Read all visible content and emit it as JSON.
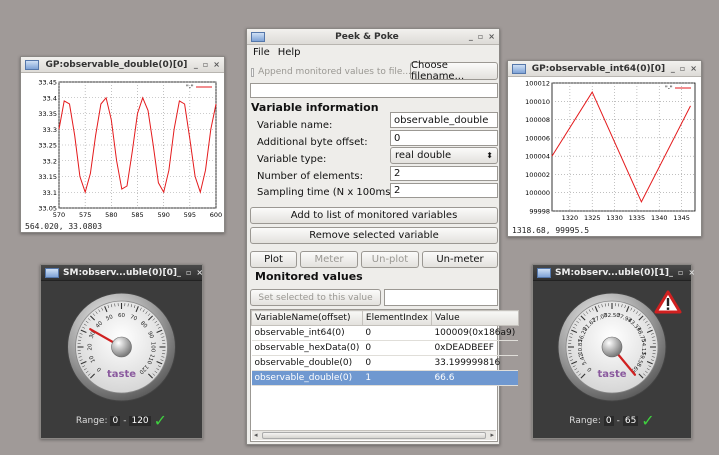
{
  "plot_double": {
    "title": "GP:observable_double(0)[0]",
    "coords": "564.020,  33.0803",
    "legend": "\"-\"",
    "chart_data": {
      "type": "line",
      "x": [
        570,
        571,
        572,
        573,
        574,
        575,
        576,
        577,
        578,
        579,
        580,
        581,
        582,
        583,
        584,
        585,
        586,
        587,
        588,
        589,
        590,
        591,
        592,
        593,
        594,
        595,
        596,
        597,
        598,
        599,
        600
      ],
      "y": [
        33.3,
        33.39,
        33.38,
        33.28,
        33.15,
        33.1,
        33.16,
        33.28,
        33.38,
        33.4,
        33.33,
        33.2,
        33.11,
        33.12,
        33.23,
        33.35,
        33.4,
        33.36,
        33.25,
        33.13,
        33.1,
        33.17,
        33.3,
        33.39,
        33.38,
        33.27,
        33.15,
        33.1,
        33.17,
        33.3,
        33.38
      ],
      "xlim": [
        570,
        600
      ],
      "ylim": [
        33.05,
        33.45
      ],
      "xticks": [
        "570",
        "575",
        "580",
        "585",
        "590",
        "595",
        "600"
      ],
      "yticks": [
        "33.05",
        "33.1",
        "33.15",
        "33.2",
        "33.25",
        "33.3",
        "33.35",
        "33.4",
        "33.45"
      ],
      "grid": true,
      "legend": "top-right",
      "color": "#e41a1c"
    }
  },
  "plot_int64": {
    "title": "GP:observable_int64(0)[0]",
    "coords": "1318.68,  99995.5",
    "legend": "\"-\"",
    "chart_data": {
      "type": "line",
      "x": [
        1316,
        1325,
        1336,
        1347
      ],
      "y": [
        100004,
        100011,
        99999,
        100009.5
      ],
      "xlim": [
        1316,
        1348
      ],
      "ylim": [
        99998,
        100012
      ],
      "xticks": [
        "1320",
        "1325",
        "1330",
        "1335",
        "1340",
        "1345"
      ],
      "yticks": [
        "99998",
        "100000",
        "100002",
        "100004",
        "100006",
        "100008",
        "100010",
        "100012"
      ],
      "grid": true,
      "legend": "top-right",
      "color": "#e41a1c"
    }
  },
  "peek": {
    "title": "Peek & Poke",
    "menu": [
      "File",
      "Help"
    ],
    "append_label": "Append monitored values to file...",
    "choose_filename": "Choose filename...",
    "var_info_heading": "Variable information",
    "labels": {
      "name": "Variable name:",
      "offset": "Additional byte offset:",
      "type": "Variable type:",
      "elements": "Number of elements:",
      "sampling": "Sampling time (N x 100ms):"
    },
    "values": {
      "name": "observable_double",
      "offset": "0",
      "type": "real double",
      "elements": "2",
      "sampling": "2"
    },
    "add_button": "Add to list of monitored variables",
    "remove_button": "Remove selected variable",
    "buttons": {
      "plot": "Plot",
      "meter": "Meter",
      "unplot": "Un-plot",
      "unmeter": "Un-meter"
    },
    "monitored_heading": "Monitored values",
    "set_selected": "Set selected to this value",
    "table": {
      "headers": [
        "VariableName(offset)",
        "ElementIndex",
        "Value"
      ],
      "rows": [
        [
          "observable_int64(0)",
          "0",
          "100009(0x186a9)"
        ],
        [
          "observable_hexData(0)",
          "0",
          "0xDEADBEEF"
        ],
        [
          "observable_double(0)",
          "0",
          "33.199999816"
        ],
        [
          "observable_double(0)",
          "1",
          "66.6"
        ]
      ]
    }
  },
  "gauge0": {
    "title": "SM:observ...uble(0)[0]",
    "brand": "taste",
    "range_label": "Range:",
    "range_min": "0",
    "range_sep": "-",
    "range_max": "120",
    "ticks": [
      "0",
      "10",
      "20",
      "30",
      "40",
      "50",
      "60",
      "70",
      "80",
      "90",
      "100",
      "110",
      "120"
    ],
    "value": 33.2
  },
  "gauge1": {
    "title": "SM:observ...uble(0)[1]",
    "brand": "taste",
    "range_label": "Range:",
    "range_min": "0",
    "range_sep": "-",
    "range_max": "65",
    "ticks": [
      "0",
      "5.42",
      "10.83",
      "16.25",
      "21.67",
      "27.08",
      "32.50",
      "37.92",
      "43.33",
      "48.75",
      "54.17",
      "59.58",
      "65"
    ],
    "value": 66.6,
    "warning": true
  }
}
